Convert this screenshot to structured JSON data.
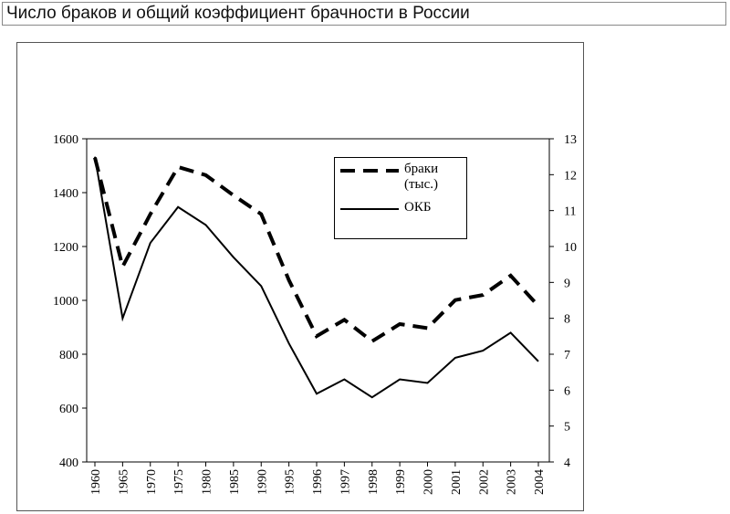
{
  "chart_data": {
    "type": "line",
    "title": "Число браков и общий коэффициент брачности в России",
    "categories": [
      "1960",
      "1965",
      "1970",
      "1975",
      "1980",
      "1985",
      "1990",
      "1995",
      "1996",
      "1997",
      "1998",
      "1999",
      "2000",
      "2001",
      "2002",
      "2003",
      "2004"
    ],
    "series": [
      {
        "name": "браки (тыс.)",
        "color": "#000000",
        "dash": true,
        "values": [
          1530,
          1125,
          1320,
          1495,
          1465,
          1390,
          1320,
          1075,
          867,
          928,
          848,
          912,
          897,
          1001,
          1020,
          1092,
          979
        ]
      },
      {
        "name": "ОКБ",
        "color": "#000000",
        "axis": "y2",
        "values": [
          12.5,
          8.0,
          10.1,
          11.1,
          10.6,
          9.7,
          8.9,
          7.3,
          5.9,
          6.3,
          5.8,
          6.3,
          6.2,
          6.9,
          7.1,
          7.6,
          6.8
        ]
      }
    ],
    "ylim": [
      400,
      1600
    ],
    "yticks": [
      400,
      600,
      800,
      1000,
      1200,
      1400,
      1600
    ],
    "y2lim": [
      4,
      13
    ],
    "y2ticks": [
      4,
      5,
      6,
      7,
      8,
      9,
      10,
      11,
      12,
      13
    ]
  }
}
